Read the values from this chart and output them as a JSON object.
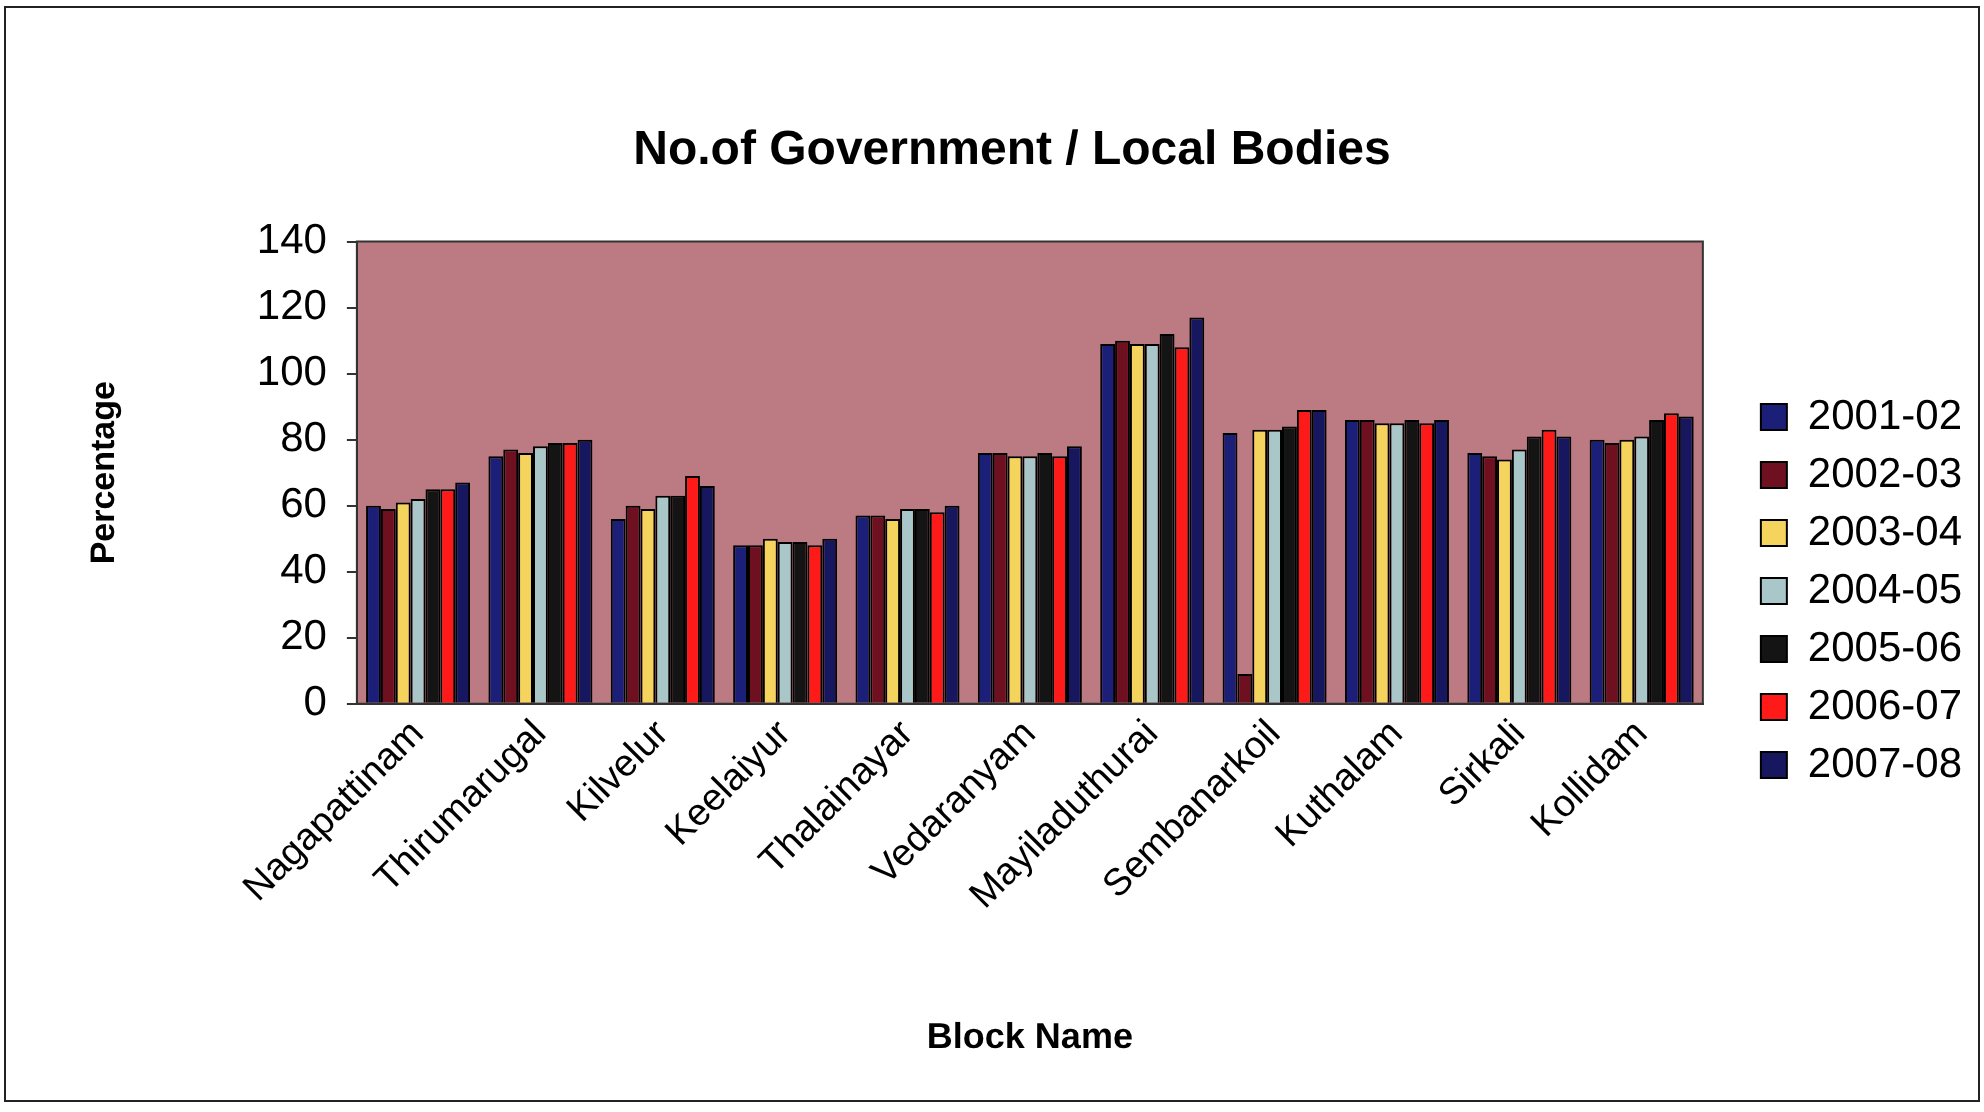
{
  "chart_data": {
    "type": "bar",
    "title": "No.of Government / Local Bodies",
    "xlabel": "Block Name",
    "ylabel": "Percentage",
    "categories": [
      "Nagapattinam",
      "Thirumarugal",
      "Kilvelur",
      "Keelaiyur",
      "Thalainayar",
      "Vedaranyam",
      "Mayiladuthurai",
      "Sembanarkoil",
      "Kuthalam",
      "Sirkali",
      "Kollidam"
    ],
    "series": [
      {
        "name": "2001-02",
        "color": "#1c1f78",
        "values": [
          60,
          75,
          56,
          48,
          57,
          76,
          109,
          82,
          86,
          76,
          80
        ]
      },
      {
        "name": "2002-03",
        "color": "#6e1020",
        "values": [
          59,
          77,
          60,
          48,
          57,
          76,
          110,
          9,
          86,
          75,
          79
        ]
      },
      {
        "name": "2003-04",
        "color": "#f4d45c",
        "values": [
          61,
          76,
          59,
          50,
          56,
          75,
          109,
          83,
          85,
          74,
          80
        ]
      },
      {
        "name": "2004-05",
        "color": "#a9c6c8",
        "values": [
          62,
          78,
          63,
          49,
          59,
          75,
          109,
          83,
          85,
          77,
          81
        ]
      },
      {
        "name": "2005-06",
        "color": "#141414",
        "values": [
          65,
          79,
          63,
          49,
          59,
          76,
          112,
          84,
          86,
          81,
          86
        ]
      },
      {
        "name": "2006-07",
        "color": "#ff1a1a",
        "values": [
          65,
          79,
          69,
          48,
          58,
          75,
          108,
          89,
          85,
          83,
          88
        ]
      },
      {
        "name": "2007-08",
        "color": "#16175e",
        "values": [
          67,
          80,
          66,
          50,
          60,
          78,
          117,
          89,
          86,
          81,
          87
        ]
      }
    ],
    "ylim": [
      0,
      140
    ],
    "yticks": [
      0,
      20,
      40,
      60,
      80,
      100,
      120,
      140
    ],
    "legend": "right"
  }
}
